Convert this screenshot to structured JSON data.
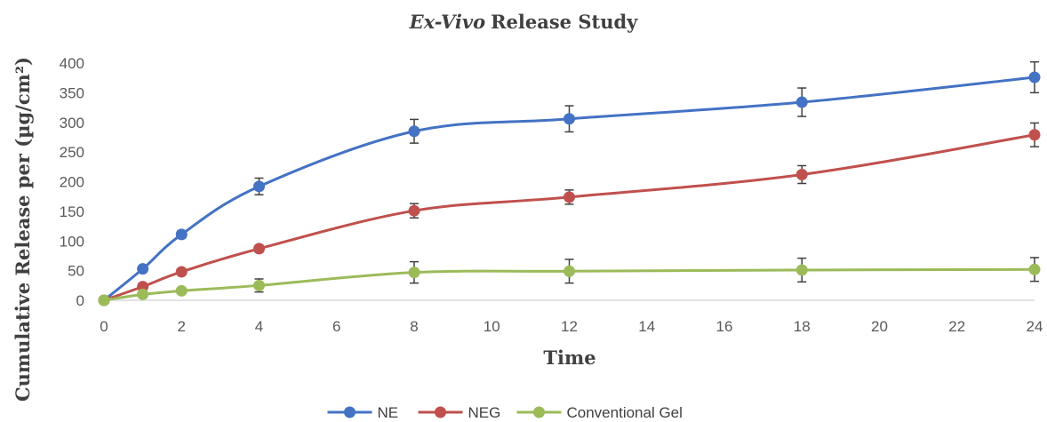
{
  "chart_data": {
    "type": "line",
    "title": "Release Study",
    "title_prefix": "Ex-Vivo",
    "xlabel": "Time",
    "ylabel": "Cumulative Release per  (µg/cm²)",
    "xlim": [
      0,
      24
    ],
    "ylim": [
      0,
      400
    ],
    "x_ticks": [
      0,
      2,
      4,
      6,
      8,
      10,
      12,
      14,
      16,
      18,
      20,
      22,
      24
    ],
    "y_ticks": [
      0,
      50,
      100,
      150,
      200,
      250,
      300,
      350,
      400
    ],
    "grid": false,
    "legend_position": "bottom",
    "smooth": true,
    "series": [
      {
        "name": "NE",
        "color": "#4472C4",
        "x": [
          0,
          1,
          2,
          4,
          8,
          12,
          18,
          24
        ],
        "y": [
          0,
          53,
          111,
          192,
          285,
          306,
          334,
          376
        ],
        "err": [
          0,
          4,
          6,
          14,
          20,
          22,
          24,
          26
        ]
      },
      {
        "name": "NEG",
        "color": "#C0504D",
        "x": [
          0,
          1,
          2,
          4,
          8,
          12,
          18,
          24
        ],
        "y": [
          0,
          23,
          48,
          87,
          151,
          174,
          212,
          279
        ],
        "err": [
          0,
          3,
          4,
          6,
          12,
          12,
          15,
          20
        ]
      },
      {
        "name": "Conventional Gel",
        "color": "#9BBB59",
        "x": [
          0,
          1,
          2,
          4,
          8,
          12,
          18,
          24
        ],
        "y": [
          0,
          10,
          16,
          25,
          47,
          49,
          51,
          52
        ],
        "err": [
          0,
          2,
          3,
          11,
          18,
          20,
          20,
          20
        ]
      }
    ]
  }
}
